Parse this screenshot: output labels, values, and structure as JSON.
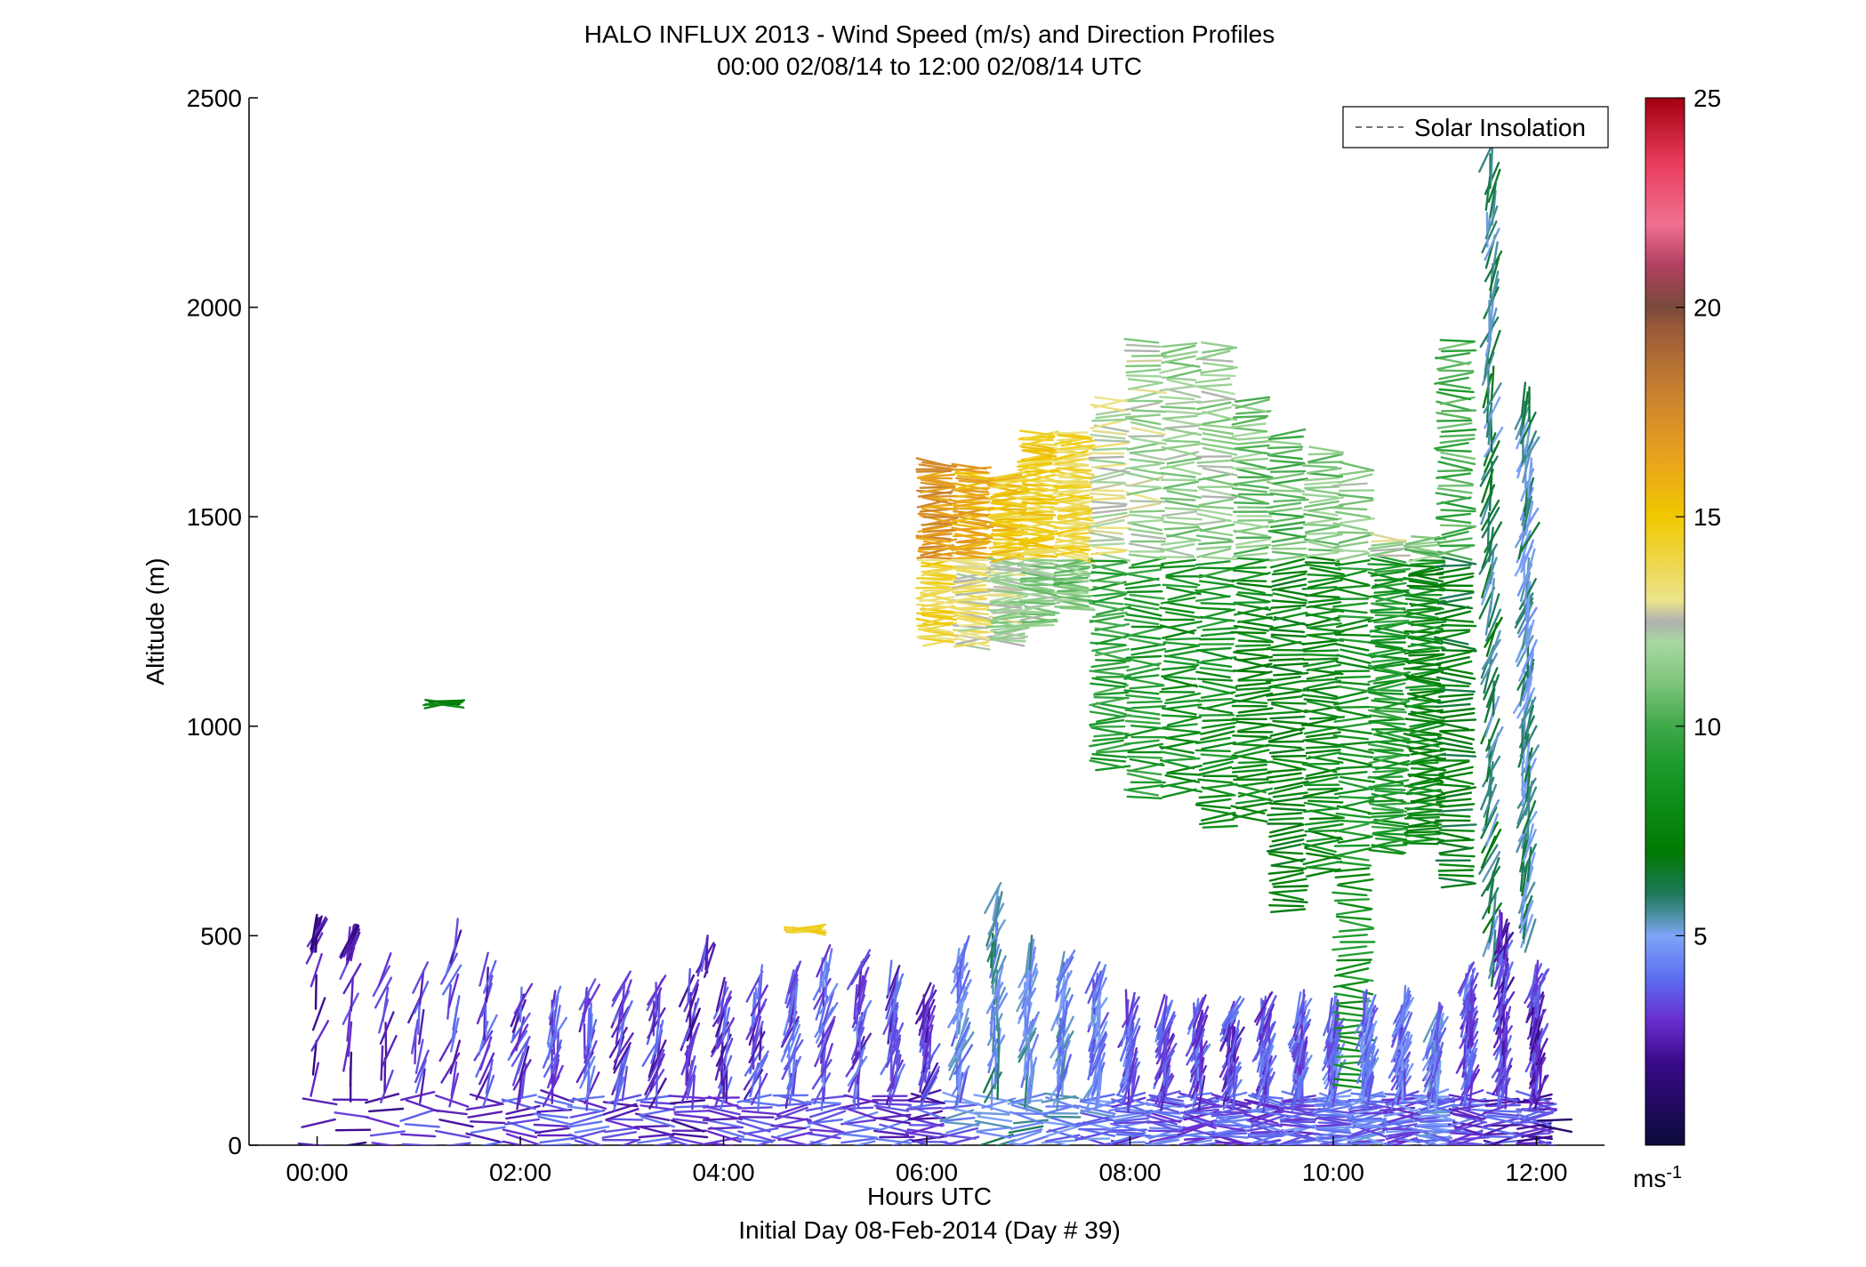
{
  "chart_data": {
    "type": "wind_barb_profile",
    "title_lines": [
      "HALO INFLUX 2013 - Wind Speed (m/s) and Direction Profiles",
      "00:00 02/08/14 to 12:00 02/08/14  UTC"
    ],
    "xlabel": "Hours UTC",
    "xlabel2": "Initial Day 08-Feb-2014 (Day # 39)",
    "ylabel": "Altitude (m)",
    "x_unit": "hours UTC",
    "xlim": [
      -0.67,
      12.67
    ],
    "ylim": [
      0,
      2500
    ],
    "x_ticks": [
      0,
      2,
      4,
      6,
      8,
      10,
      12
    ],
    "x_tick_labels": [
      "00:00",
      "02:00",
      "04:00",
      "06:00",
      "08:00",
      "10:00",
      "12:00"
    ],
    "y_ticks": [
      0,
      500,
      1000,
      1500,
      2000,
      2500
    ],
    "y_tick_labels": [
      "0",
      "500",
      "1000",
      "1500",
      "2000",
      "2500"
    ],
    "grid": false,
    "legend": {
      "position": "top-right",
      "entries": [
        "Solar Insolation"
      ]
    },
    "colorbar": {
      "min": 0,
      "max": 25,
      "ticks": [
        5,
        10,
        15,
        20,
        25
      ],
      "tick_labels": [
        "5",
        "10",
        "15",
        "20",
        "25"
      ],
      "unit_label": "ms",
      "unit_exp": "-1",
      "stops": [
        [
          0.0,
          "#0b0b3a"
        ],
        [
          2.0,
          "#3a0a8a"
        ],
        [
          3.0,
          "#6a2fd0"
        ],
        [
          4.0,
          "#5c6ef0"
        ],
        [
          5.0,
          "#7fa4f8"
        ],
        [
          5.5,
          "#4a90a0"
        ],
        [
          6.0,
          "#1e7a5c"
        ],
        [
          7.0,
          "#007a00"
        ],
        [
          9.0,
          "#1a9a2a"
        ],
        [
          10.0,
          "#3fa84a"
        ],
        [
          11.0,
          "#7cc47a"
        ],
        [
          12.0,
          "#a8d8a0"
        ],
        [
          12.5,
          "#b0b0b0"
        ],
        [
          13.0,
          "#ece48c"
        ],
        [
          15.0,
          "#f0c800"
        ],
        [
          16.5,
          "#e8a020"
        ],
        [
          18.0,
          "#c88030"
        ],
        [
          19.5,
          "#9a5a38"
        ],
        [
          20.0,
          "#7a4a3a"
        ],
        [
          21.0,
          "#b04060"
        ],
        [
          22.0,
          "#f07090"
        ],
        [
          23.5,
          "#e83a5a"
        ],
        [
          25.0,
          "#a00010"
        ]
      ]
    },
    "profile_times": [
      0,
      0.33,
      0.67,
      1.0,
      1.33,
      1.67,
      2.0,
      2.33,
      2.67,
      3.0,
      3.33,
      3.67,
      4.0,
      4.33,
      4.67,
      5.0,
      5.33,
      5.67,
      6.0,
      6.33,
      6.67,
      7.0,
      7.33,
      7.67,
      8.0,
      8.33,
      8.67,
      9.0,
      9.33,
      9.67,
      10.0,
      10.33,
      10.67,
      11.0,
      11.33,
      11.67,
      12.0
    ],
    "series": [
      {
        "seg": [
          [
            0,
            0,
            470,
            2.2,
            10
          ],
          [
            0,
            500,
            510,
            2.0,
            10
          ]
        ]
      },
      {
        "seg": [
          [
            0.33,
            0,
            470,
            2.6,
            14
          ],
          [
            0.33,
            480,
            490,
            2.3,
            12
          ]
        ]
      },
      {
        "seg": [
          [
            0.67,
            0,
            420,
            3.0,
            16
          ]
        ]
      },
      {
        "seg": [
          [
            1.0,
            0,
            400,
            3.0,
            18
          ],
          [
            1.25,
            1050,
            1060,
            7.8,
            8
          ]
        ]
      },
      {
        "seg": [
          [
            1.33,
            0,
            500,
            3.2,
            20
          ]
        ]
      },
      {
        "seg": [
          [
            1.67,
            0,
            420,
            3.4,
            24
          ]
        ]
      },
      {
        "seg": [
          [
            2.0,
            0,
            350,
            3.2,
            26
          ]
        ]
      },
      {
        "seg": [
          [
            2.33,
            0,
            340,
            3.4,
            30
          ]
        ]
      },
      {
        "seg": [
          [
            2.67,
            0,
            360,
            3.6,
            30
          ]
        ]
      },
      {
        "seg": [
          [
            3.0,
            0,
            380,
            3.4,
            32
          ]
        ]
      },
      {
        "seg": [
          [
            3.33,
            0,
            370,
            3.2,
            34
          ]
        ]
      },
      {
        "seg": [
          [
            3.67,
            0,
            380,
            3.0,
            34
          ],
          [
            3.83,
            440,
            460,
            3.4,
            6
          ]
        ]
      },
      {
        "seg": [
          [
            4.0,
            0,
            360,
            3.2,
            36
          ]
        ]
      },
      {
        "seg": [
          [
            4.33,
            0,
            390,
            3.4,
            36
          ],
          [
            4.8,
            510,
            520,
            14.5,
            12
          ]
        ]
      },
      {
        "seg": [
          [
            4.67,
            0,
            400,
            3.6,
            38
          ]
        ]
      },
      {
        "seg": [
          [
            5.0,
            0,
            440,
            3.8,
            40
          ]
        ]
      },
      {
        "seg": [
          [
            5.33,
            0,
            430,
            3.6,
            40
          ]
        ]
      },
      {
        "seg": [
          [
            5.67,
            0,
            400,
            3.4,
            42
          ]
        ]
      },
      {
        "seg": [
          [
            6.0,
            0,
            350,
            3.2,
            45
          ],
          [
            6.1,
            1200,
            1630,
            14.0,
            80
          ]
        ]
      },
      {
        "seg": [
          [
            6.33,
            0,
            460,
            4.4,
            46
          ],
          [
            6.45,
            1190,
            1620,
            13.0,
            82
          ]
        ]
      },
      {
        "seg": [
          [
            6.67,
            0,
            590,
            5.2,
            48
          ],
          [
            6.8,
            1200,
            1600,
            12.0,
            84
          ]
        ]
      },
      {
        "seg": [
          [
            7.0,
            0,
            460,
            5.0,
            50
          ],
          [
            7.1,
            1240,
            1700,
            11.5,
            86
          ]
        ]
      },
      {
        "seg": [
          [
            7.33,
            0,
            430,
            4.6,
            52
          ],
          [
            7.45,
            1280,
            1700,
            11.0,
            88
          ]
        ]
      },
      {
        "seg": [
          [
            7.67,
            0,
            400,
            4.4,
            54
          ],
          [
            7.8,
            900,
            1780,
            9.5,
            90
          ]
        ]
      },
      {
        "seg": [
          [
            8.0,
            0,
            330,
            3.8,
            56
          ],
          [
            8.15,
            830,
            1920,
            9.0,
            92
          ]
        ]
      },
      {
        "seg": [
          [
            8.33,
            0,
            320,
            3.6,
            58
          ],
          [
            8.5,
            840,
            1910,
            8.5,
            94
          ]
        ]
      },
      {
        "seg": [
          [
            8.67,
            0,
            320,
            3.6,
            60
          ],
          [
            8.85,
            760,
            1910,
            8.6,
            96
          ]
        ]
      },
      {
        "seg": [
          [
            9.0,
            0,
            320,
            3.4,
            62
          ],
          [
            9.2,
            780,
            1780,
            8.0,
            98
          ]
        ]
      },
      {
        "seg": [
          [
            9.33,
            0,
            330,
            3.6,
            64
          ],
          [
            9.55,
            560,
            1700,
            7.5,
            100
          ]
        ]
      },
      {
        "seg": [
          [
            9.67,
            0,
            330,
            3.8,
            66
          ],
          [
            9.9,
            650,
            1660,
            8.0,
            102
          ]
        ]
      },
      {
        "seg": [
          [
            10.0,
            0,
            320,
            4.0,
            68
          ],
          [
            10.2,
            140,
            1620,
            8.5,
            104
          ]
        ]
      },
      {
        "seg": [
          [
            10.33,
            0,
            330,
            4.2,
            70
          ],
          [
            10.55,
            700,
            1450,
            9.0,
            106
          ]
        ]
      },
      {
        "seg": [
          [
            10.67,
            0,
            340,
            4.0,
            72
          ],
          [
            10.9,
            720,
            1450,
            8.0,
            108
          ]
        ]
      },
      {
        "seg": [
          [
            11.0,
            0,
            300,
            4.4,
            74
          ],
          [
            11.2,
            620,
            1920,
            7.0,
            110
          ]
        ]
      },
      {
        "seg": [
          [
            11.33,
            0,
            400,
            3.6,
            76
          ],
          [
            11.55,
            420,
            2360,
            6.0,
            112
          ]
        ]
      },
      {
        "seg": [
          [
            11.67,
            0,
            520,
            3.2,
            78
          ],
          [
            11.9,
            500,
            1780,
            5.5,
            114
          ]
        ]
      },
      {
        "seg": [
          [
            12.0,
            0,
            400,
            3.0,
            80
          ],
          [
            12.2,
            40,
            60,
            1.0,
            2
          ]
        ]
      }
    ]
  },
  "legend_text": "Solar Insolation"
}
